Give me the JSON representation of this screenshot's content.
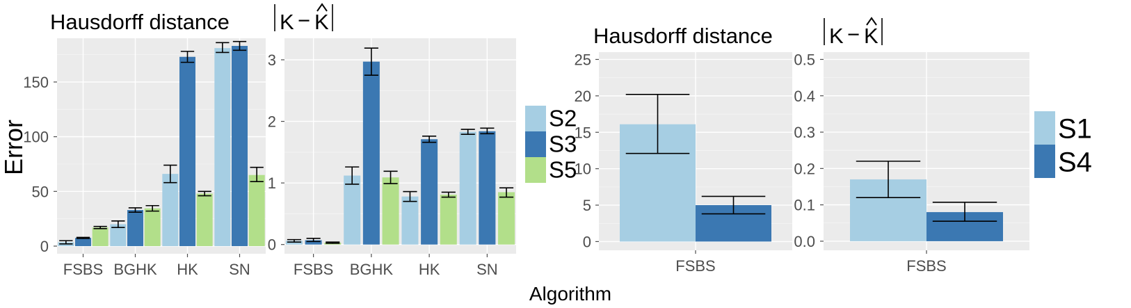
{
  "figure": {
    "y_axis_title": "Error",
    "x_axis_title": "Algorithm"
  },
  "colors": {
    "S1": "#a6cee3",
    "S2": "#a6cee3",
    "S3": "#3b78b2",
    "S4": "#3b78b2",
    "S5": "#b2df8a"
  },
  "chart_data": [
    {
      "id": "p1",
      "type": "bar",
      "title": "Hausdorff distance",
      "categories": [
        "FSBS",
        "BGHK",
        "HK",
        "SN"
      ],
      "ylim": [
        -7,
        190
      ],
      "yticks": [
        0,
        50,
        100,
        150
      ],
      "grid": true,
      "series": [
        {
          "name": "S2",
          "values": [
            3.5,
            20,
            66,
            181
          ],
          "err": [
            [
              2,
              5
            ],
            [
              17,
              23
            ],
            [
              58,
              74
            ],
            [
              177,
              186
            ]
          ]
        },
        {
          "name": "S3",
          "values": [
            7.5,
            33,
            173,
            183
          ],
          "err": [
            [
              7,
              8
            ],
            [
              31,
              35
            ],
            [
              168,
              178
            ],
            [
              179,
              187
            ]
          ]
        },
        {
          "name": "S5",
          "values": [
            17,
            34.5,
            48,
            65
          ],
          "err": [
            [
              16,
              18
            ],
            [
              32,
              37
            ],
            [
              46,
              50
            ],
            [
              59,
              72
            ]
          ]
        }
      ]
    },
    {
      "id": "p2",
      "type": "bar",
      "title": "|K − K̂|",
      "categories": [
        "FSBS",
        "BGHK",
        "HK",
        "SN"
      ],
      "ylim": [
        -0.15,
        3.35
      ],
      "yticks": [
        0,
        1,
        2,
        3
      ],
      "grid": true,
      "legend": {
        "entries": [
          "S2",
          "S3",
          "S5"
        ],
        "placement": "right"
      },
      "series": [
        {
          "name": "S2",
          "values": [
            0.06,
            1.12,
            0.78,
            1.83
          ],
          "err": [
            [
              0.04,
              0.08
            ],
            [
              0.98,
              1.26
            ],
            [
              0.7,
              0.86
            ],
            [
              1.79,
              1.87
            ]
          ]
        },
        {
          "name": "S3",
          "values": [
            0.07,
            2.97,
            1.71,
            1.84
          ],
          "err": [
            [
              0.05,
              0.1
            ],
            [
              2.75,
              3.19
            ],
            [
              1.66,
              1.76
            ],
            [
              1.8,
              1.89
            ]
          ]
        },
        {
          "name": "S5",
          "values": [
            0.03,
            1.09,
            0.81,
            0.85
          ],
          "err": [
            [
              0.02,
              0.04
            ],
            [
              0.99,
              1.19
            ],
            [
              0.77,
              0.85
            ],
            [
              0.77,
              0.92
            ]
          ]
        }
      ]
    },
    {
      "id": "p3",
      "type": "bar",
      "title": "Hausdorff distance",
      "categories": [
        "FSBS"
      ],
      "ylim": [
        -1.2,
        26
      ],
      "yticks": [
        0,
        5,
        10,
        15,
        20,
        25
      ],
      "grid": true,
      "series": [
        {
          "name": "S1",
          "values": [
            16.1
          ],
          "err": [
            [
              12.1,
              20.2
            ]
          ]
        },
        {
          "name": "S4",
          "values": [
            5.0
          ],
          "err": [
            [
              3.8,
              6.2
            ]
          ]
        }
      ]
    },
    {
      "id": "p4",
      "type": "bar",
      "title": "|K − K̂|",
      "categories": [
        "FSBS"
      ],
      "ylim": [
        -0.025,
        0.52
      ],
      "yticks": [
        0.0,
        0.1,
        0.2,
        0.3,
        0.4,
        0.5
      ],
      "ytick_labels": [
        "0.0",
        "0.1",
        "0.2",
        "0.3",
        "0.4",
        "0.5"
      ],
      "grid": true,
      "legend": {
        "entries": [
          "S1",
          "S4"
        ],
        "placement": "right"
      },
      "series": [
        {
          "name": "S1",
          "values": [
            0.17
          ],
          "err": [
            [
              0.12,
              0.22
            ]
          ]
        },
        {
          "name": "S4",
          "values": [
            0.08
          ],
          "err": [
            [
              0.055,
              0.107
            ]
          ]
        }
      ]
    }
  ]
}
